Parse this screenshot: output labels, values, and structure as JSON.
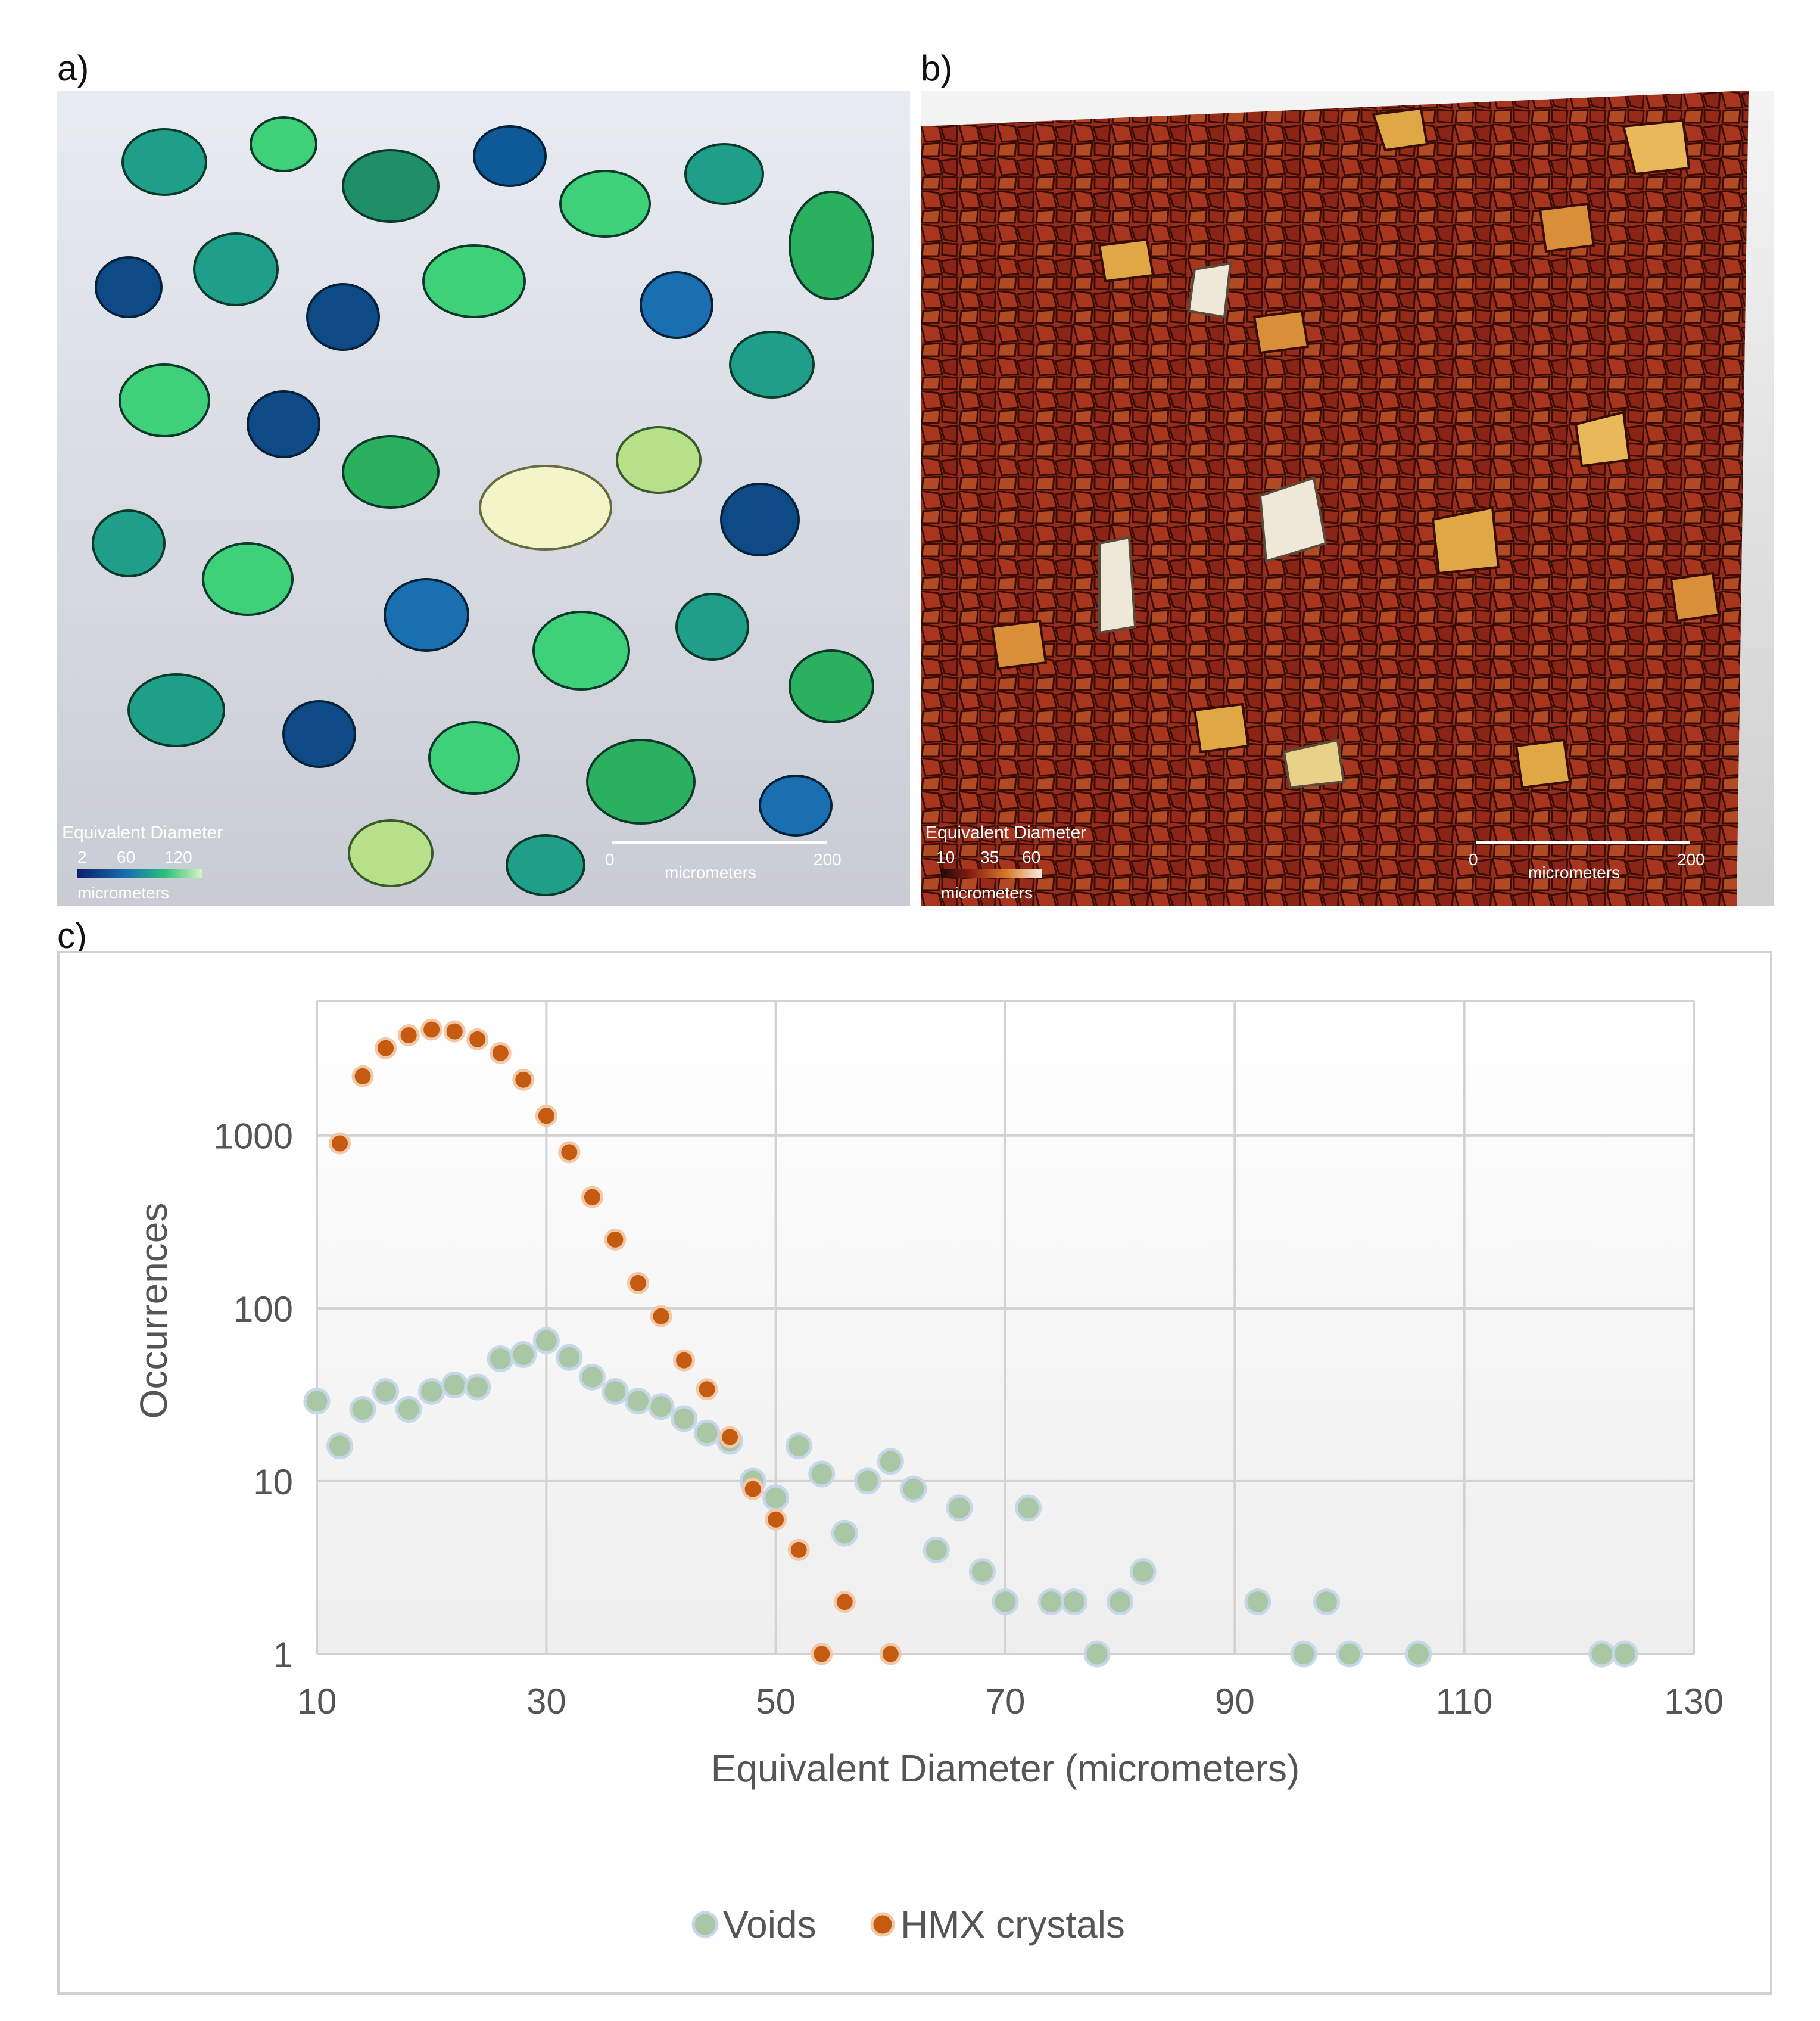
{
  "panels": {
    "a": {
      "label": "a)",
      "colorbar_title": "Equivalent Diameter",
      "colorbar_ticks": [
        "2",
        "60",
        "120"
      ],
      "colorbar_units": "micrometers",
      "scalebar_start": "0",
      "scalebar_end": "200",
      "scalebar_units": "micrometers",
      "colors": {
        "bg": "#dfe2ea",
        "dark": "#0d4a86",
        "mid": "#1f9e8a",
        "light": "#3fd07a",
        "highlight": "#f3f4c8"
      }
    },
    "b": {
      "label": "b)",
      "colorbar_title": "Equivalent Diameter",
      "colorbar_ticks": [
        "10",
        "35",
        "60"
      ],
      "colorbar_units": "micrometers",
      "scalebar_start": "0",
      "scalebar_end": "200",
      "scalebar_units": "micrometers",
      "colors": {
        "bg": "#8a2a1c",
        "dark": "#7e1f14",
        "mid": "#c0532a",
        "light": "#e0a845",
        "highlight": "#efe8d8"
      }
    },
    "c": {
      "label": "c)"
    }
  },
  "chart_data": {
    "type": "scatter",
    "xlabel": "Equivalent Diameter (micrometers)",
    "ylabel": "Occurrences",
    "xlim": [
      10,
      130
    ],
    "ylim": [
      1,
      6000
    ],
    "yscale": "log",
    "x_ticks": [
      10,
      30,
      50,
      70,
      90,
      110,
      130
    ],
    "y_ticks": [
      1,
      10,
      100,
      1000
    ],
    "grid": true,
    "legend_position": "bottom",
    "series": [
      {
        "name": "Voids",
        "color": "#a9c7a4",
        "points": [
          [
            10,
            29
          ],
          [
            12,
            16
          ],
          [
            14,
            26
          ],
          [
            16,
            33
          ],
          [
            18,
            26
          ],
          [
            20,
            33
          ],
          [
            22,
            36
          ],
          [
            24,
            35
          ],
          [
            26,
            51
          ],
          [
            28,
            54
          ],
          [
            30,
            65
          ],
          [
            32,
            52
          ],
          [
            34,
            40
          ],
          [
            36,
            33
          ],
          [
            38,
            29
          ],
          [
            40,
            27
          ],
          [
            42,
            23
          ],
          [
            44,
            19
          ],
          [
            46,
            17
          ],
          [
            48,
            10
          ],
          [
            50,
            8
          ],
          [
            52,
            16
          ],
          [
            54,
            11
          ],
          [
            56,
            5
          ],
          [
            58,
            10
          ],
          [
            60,
            13
          ],
          [
            62,
            9
          ],
          [
            64,
            4
          ],
          [
            66,
            7
          ],
          [
            68,
            3
          ],
          [
            70,
            2
          ],
          [
            72,
            7
          ],
          [
            74,
            2
          ],
          [
            76,
            2
          ],
          [
            78,
            1
          ],
          [
            80,
            2
          ],
          [
            82,
            3
          ],
          [
            92,
            2
          ],
          [
            96,
            1
          ],
          [
            98,
            2
          ],
          [
            100,
            1
          ],
          [
            106,
            1
          ],
          [
            122,
            1
          ],
          [
            124,
            1
          ]
        ]
      },
      {
        "name": "HMX crystals",
        "color": "#c55a11",
        "points": [
          [
            12,
            900
          ],
          [
            14,
            2200
          ],
          [
            16,
            3200
          ],
          [
            18,
            3800
          ],
          [
            20,
            4100
          ],
          [
            22,
            4000
          ],
          [
            24,
            3600
          ],
          [
            26,
            3000
          ],
          [
            28,
            2100
          ],
          [
            30,
            1300
          ],
          [
            32,
            800
          ],
          [
            34,
            440
          ],
          [
            36,
            250
          ],
          [
            38,
            140
          ],
          [
            40,
            90
          ],
          [
            42,
            50
          ],
          [
            44,
            34
          ],
          [
            46,
            18
          ],
          [
            48,
            9
          ],
          [
            50,
            6
          ],
          [
            52,
            4
          ],
          [
            56,
            2
          ],
          [
            54,
            1
          ],
          [
            60,
            1
          ]
        ]
      }
    ]
  }
}
